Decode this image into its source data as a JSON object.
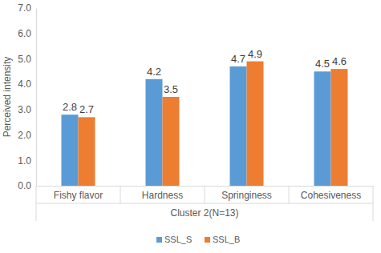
{
  "chart_data": {
    "type": "bar",
    "x_label": "Cluster 2(N=13)",
    "y_label": "Perceived intensity",
    "categories": [
      "Fishy flavor",
      "Hardness",
      "Springiness",
      "Cohesiveness"
    ],
    "series": [
      {
        "name": "SSL_S",
        "color": "#5b9bd5",
        "values": [
          2.8,
          4.2,
          4.7,
          4.5
        ]
      },
      {
        "name": "SSL_B",
        "color": "#ed7d31",
        "values": [
          2.7,
          3.5,
          4.9,
          4.6
        ]
      }
    ],
    "ylim": [
      0,
      7
    ],
    "yticks": [
      {
        "value": 0,
        "label": "0.0"
      },
      {
        "value": 1,
        "label": "1.0"
      },
      {
        "value": 2,
        "label": "2.0"
      },
      {
        "value": 3,
        "label": "3.0"
      },
      {
        "value": 4,
        "label": "4.0"
      },
      {
        "value": 5,
        "label": "5.0"
      },
      {
        "value": 6,
        "label": "6.0"
      },
      {
        "value": 7,
        "label": "7.0"
      }
    ],
    "grid": false,
    "legend": "bottom",
    "data_labels": true
  }
}
